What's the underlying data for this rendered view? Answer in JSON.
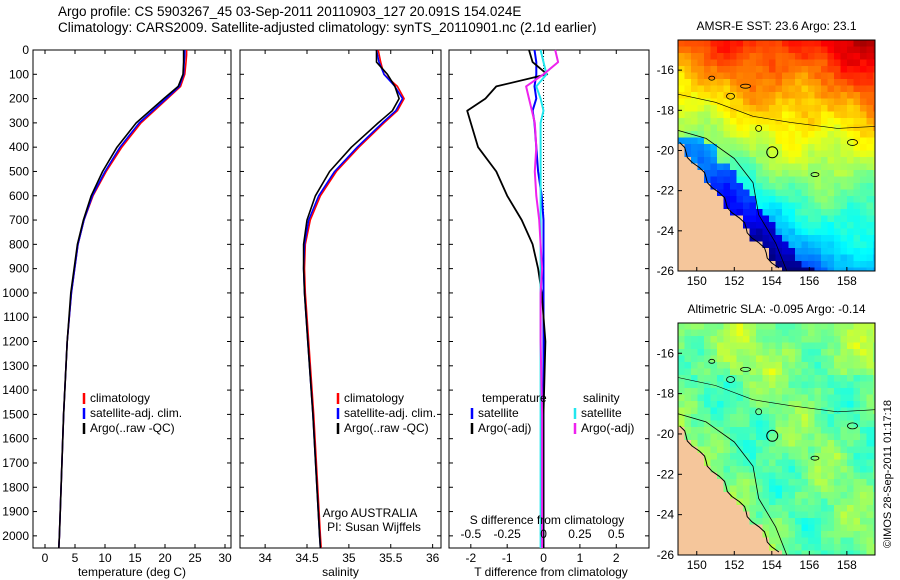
{
  "header": {
    "line1": "Argo profile: CS 5903267_45 03-Sep-2011 20110903_127 20.091S 154.024E",
    "line2": "Climatology: CARS2009. Satellite-adjusted climatology: synTS_20110901.nc (2.1d earlier)"
  },
  "credit": "©IMOS 28-Sep-2011 01:17:18",
  "colors": {
    "climatology": "#ff0000",
    "satellite": "#0000ff",
    "argo": "#000000",
    "satellite_s": "#22e6ee",
    "argo_s": "#ee22ee",
    "land": "#f5c69b"
  },
  "chart_data": [
    {
      "type": "line",
      "name": "temperature-profile",
      "xlabel": "temperature (deg C)",
      "xlim": [
        -2,
        31
      ],
      "ylim": [
        2050,
        0
      ],
      "xticks": [
        0,
        5,
        10,
        15,
        20,
        25,
        30
      ],
      "yticks": [
        0,
        100,
        200,
        300,
        400,
        500,
        600,
        700,
        800,
        900,
        1000,
        1100,
        1200,
        1300,
        1400,
        1500,
        1600,
        1700,
        1800,
        1900,
        2000
      ],
      "depth": [
        0,
        20,
        50,
        100,
        150,
        200,
        300,
        400,
        500,
        600,
        700,
        800,
        1000,
        1200,
        1500,
        2000,
        2050
      ],
      "legend": [
        "climatology",
        "satellite-adj. clim.",
        "Argo(..raw -QC)"
      ],
      "series": [
        {
          "name": "climatology",
          "color": "#ff0000",
          "values": [
            23.6,
            23.6,
            23.5,
            23.3,
            22.6,
            20.4,
            16.0,
            12.8,
            10.2,
            8.0,
            6.5,
            5.5,
            4.4,
            3.7,
            3.1,
            2.4,
            2.3
          ]
        },
        {
          "name": "satellite-adj. clim.",
          "color": "#0000ff",
          "values": [
            23.3,
            23.3,
            23.2,
            23.1,
            22.4,
            20.2,
            15.7,
            12.5,
            10.0,
            7.9,
            6.5,
            5.5,
            4.4,
            3.7,
            3.1,
            2.4,
            2.3
          ]
        },
        {
          "name": "Argo(..raw -QC)",
          "color": "#000000",
          "values": [
            23.1,
            23.1,
            23.1,
            23.0,
            22.2,
            19.8,
            15.2,
            12.0,
            9.6,
            7.7,
            6.4,
            5.4,
            4.3,
            3.7,
            3.1,
            2.4,
            2.3
          ]
        }
      ]
    },
    {
      "type": "line",
      "name": "salinity-profile",
      "xlabel": "salinity",
      "xlim": [
        33.7,
        36.1
      ],
      "ylim": [
        2050,
        0
      ],
      "xticks": [
        34,
        34.5,
        35,
        35.5,
        36
      ],
      "depth": [
        0,
        50,
        100,
        150,
        200,
        250,
        300,
        400,
        500,
        600,
        700,
        800,
        900,
        1000,
        1200,
        1500,
        2000,
        2050
      ],
      "legend": [
        "climatology",
        "satellite-adj. clim.",
        "Argo(..raw -QC)"
      ],
      "annotation": [
        "Argo AUSTRALIA",
        "PI: Susan Wijffels"
      ],
      "series": [
        {
          "name": "climatology",
          "color": "#ff0000",
          "values": [
            35.35,
            35.38,
            35.42,
            35.58,
            35.66,
            35.58,
            35.42,
            35.12,
            34.85,
            34.66,
            34.54,
            34.48,
            34.47,
            34.48,
            34.52,
            34.58,
            34.66,
            34.67
          ]
        },
        {
          "name": "satellite-adj. clim.",
          "color": "#0000ff",
          "values": [
            35.33,
            35.36,
            35.42,
            35.55,
            35.64,
            35.56,
            35.4,
            35.1,
            34.83,
            34.64,
            34.52,
            34.47,
            34.46,
            34.47,
            34.51,
            34.57,
            34.65,
            34.66
          ]
        },
        {
          "name": "Argo(..raw -QC)",
          "color": "#000000",
          "values": [
            35.33,
            35.33,
            35.46,
            35.55,
            35.6,
            35.52,
            35.35,
            35.03,
            34.77,
            34.6,
            34.5,
            34.46,
            34.46,
            34.47,
            34.51,
            34.57,
            34.65,
            34.66
          ]
        }
      ]
    },
    {
      "type": "line",
      "name": "difference-profile",
      "xlabel": "T difference from climatology",
      "top_label": "S difference from climatology",
      "xlim": [
        -2.6,
        2.9
      ],
      "ylim": [
        2050,
        0
      ],
      "xticks": [
        -2,
        -1,
        0,
        1,
        2
      ],
      "s_ticks": [
        -0.5,
        -0.25,
        0,
        0.25,
        0.5
      ],
      "s_tick_labels": [
        "-0.5",
        "-0.25",
        "0",
        "0.25",
        "0.5"
      ],
      "legend_headers": [
        "temperature",
        "salinity"
      ],
      "legend": [
        "satellite",
        "Argo(-adj)",
        "satellite",
        "Argo(-adj)"
      ],
      "depth": [
        0,
        50,
        100,
        150,
        200,
        250,
        300,
        400,
        500,
        600,
        700,
        800,
        900,
        1000,
        1200,
        1500,
        2000,
        2050
      ],
      "series": [
        {
          "name": "T satellite",
          "color": "#0000ff",
          "values": [
            -0.25,
            -0.2,
            -0.2,
            -0.25,
            -0.2,
            -0.3,
            -0.25,
            -0.2,
            -0.15,
            -0.05,
            0.0,
            0.0,
            0.0,
            0.0,
            0.0,
            0.0,
            0.0,
            0.0
          ]
        },
        {
          "name": "T Argo(-adj)",
          "color": "#000000",
          "values": [
            -0.4,
            -0.3,
            0.1,
            -1.3,
            -1.6,
            -2.1,
            -2.0,
            -1.8,
            -1.3,
            -1.0,
            -0.6,
            -0.3,
            -0.15,
            -0.05,
            0.05,
            0.0,
            0.0,
            0.0
          ]
        },
        {
          "name": "S satellite",
          "color": "#22e6ee",
          "values": [
            -0.02,
            0.0,
            0.02,
            -0.05,
            -0.02,
            0.0,
            -0.02,
            -0.02,
            -0.02,
            -0.02,
            -0.02,
            -0.02,
            -0.02,
            -0.02,
            -0.02,
            -0.02,
            -0.02,
            -0.02
          ]
        },
        {
          "name": "S Argo(-adj)",
          "color": "#ee22ee",
          "values": [
            0.08,
            0.1,
            0.0,
            -0.12,
            -0.1,
            -0.08,
            -0.06,
            -0.05,
            -0.06,
            -0.05,
            -0.03,
            -0.02,
            -0.01,
            -0.02,
            -0.02,
            -0.01,
            -0.01,
            -0.01
          ]
        }
      ]
    },
    {
      "type": "heatmap",
      "name": "sst-map",
      "title": "AMSR-E SST: 23.6 Argo: 23.1",
      "xlim": [
        149,
        159.5
      ],
      "ylim": [
        -26,
        -14.5
      ],
      "xticks": [
        150,
        152,
        154,
        156,
        158
      ],
      "yticks": [
        -16,
        -18,
        -20,
        -22,
        -24,
        -26
      ],
      "argo_position": [
        154.024,
        -20.091
      ]
    },
    {
      "type": "heatmap",
      "name": "sla-map",
      "title": "Altimetric SLA: -0.095 Argo: -0.14",
      "xlim": [
        149,
        159.5
      ],
      "ylim": [
        -26,
        -14.5
      ],
      "xticks": [
        150,
        152,
        154,
        156,
        158
      ],
      "yticks": [
        -16,
        -18,
        -20,
        -22,
        -24,
        -26
      ],
      "argo_position": [
        154.024,
        -20.091
      ]
    }
  ]
}
